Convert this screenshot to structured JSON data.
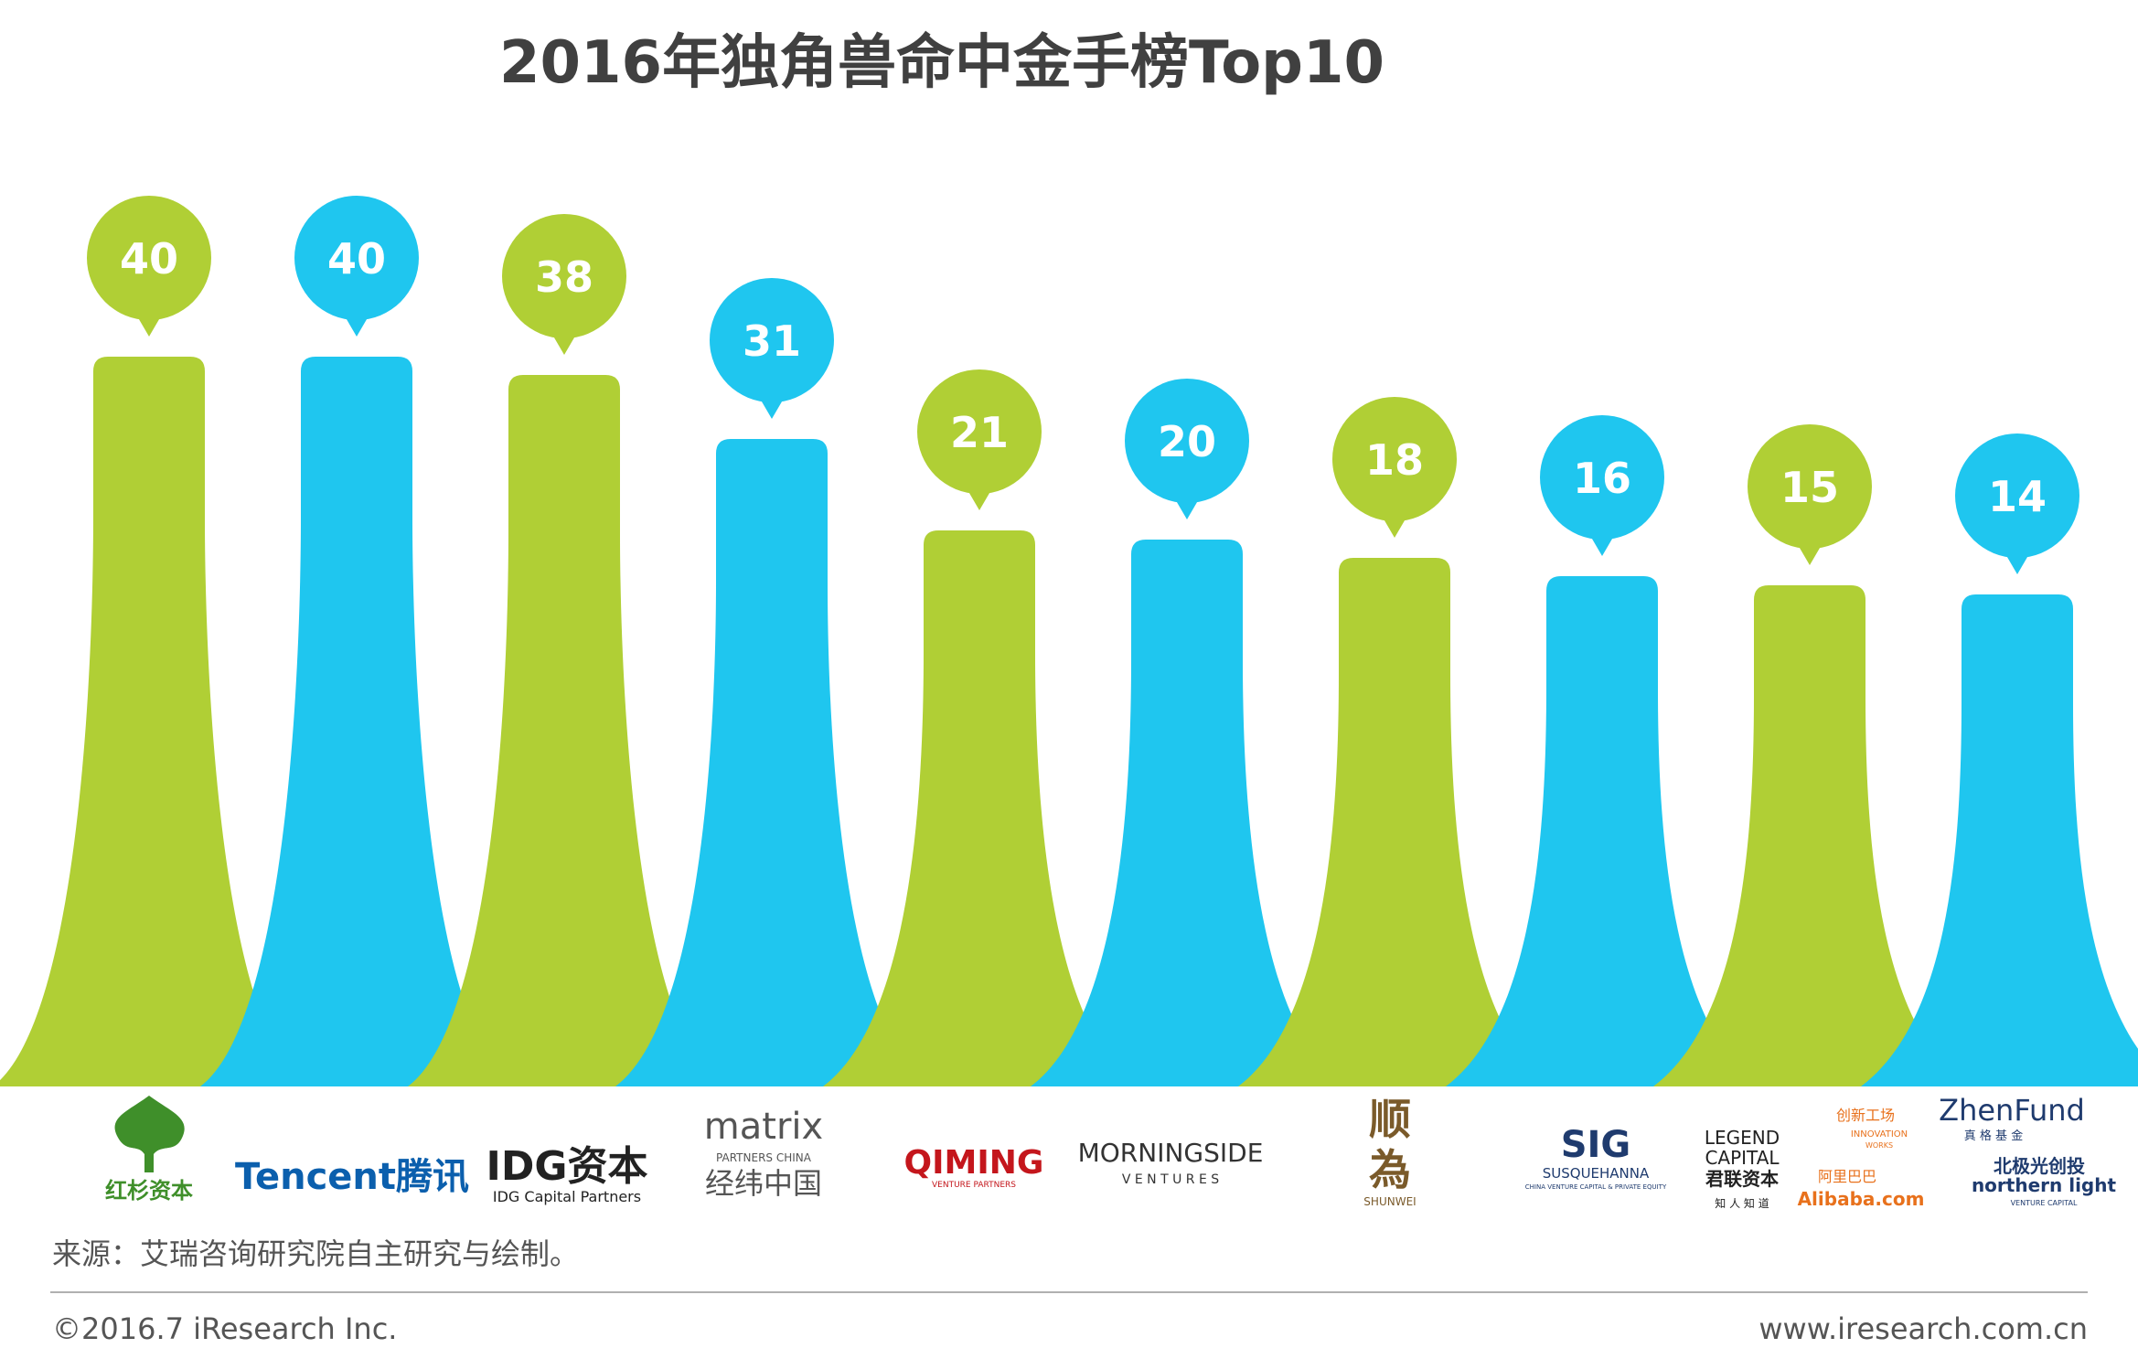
{
  "chart_data": {
    "type": "bar",
    "title": "2016年独角兽命中金手榜Top10",
    "xlabel": "",
    "ylabel": "",
    "ylim": [
      0,
      40
    ],
    "grid": false,
    "legend": "none",
    "categories": [
      "红杉资本",
      "Tencent腾讯",
      "IDG资本",
      "matrix 经纬中国",
      "QIMING",
      "MORNINGSIDE VENTURES",
      "顺为",
      "SIG",
      "LEGEND CAPITAL 君联资本 / 创新工场 / Alibaba.com",
      "ZhenFund 真格基金 / 北极光创投 northern light"
    ],
    "values": [
      40,
      40,
      38,
      31,
      21,
      20,
      18,
      16,
      15,
      14
    ],
    "colors": [
      "#b0cf35",
      "#1fc6ef",
      "#b0cf35",
      "#1fc6ef",
      "#b0cf35",
      "#1fc6ef",
      "#b0cf35",
      "#1fc6ef",
      "#b0cf35",
      "#1fc6ef"
    ]
  },
  "logos": [
    {
      "lines": [
        "红杉资本"
      ],
      "color": "#3f8f2a"
    },
    {
      "lines": [
        "Tencent腾讯"
      ],
      "color": "#0b5fad"
    },
    {
      "lines": [
        "IDG资本",
        "IDG Capital Partners"
      ],
      "color": "#222222"
    },
    {
      "lines": [
        "matrix",
        "PARTNERS CHINA",
        "经纬中国"
      ],
      "color": "#555555"
    },
    {
      "lines": [
        "QIMING",
        "VENTURE PARTNERS"
      ],
      "color": "#c4161c"
    },
    {
      "lines": [
        "MORNINGSIDE",
        "V E N T U R E S"
      ],
      "color": "#333333"
    },
    {
      "lines": [
        "顺",
        "為",
        "SHUNWEI"
      ],
      "color": "#7a5a2a"
    },
    {
      "lines": [
        "SIG",
        "SUSQUEHANNA",
        "CHINA VENTURE CAPITAL & PRIVATE EQUITY"
      ],
      "color": "#1f3b6e"
    },
    {
      "lines": [
        "LEGEND",
        "CAPITAL",
        "君联资本",
        "知 人 知 道"
      ],
      "color": "#222222"
    },
    {
      "lines": [
        "创新工场",
        "INNOVATION",
        "WORKS",
        "阿里巴巴",
        "Alibaba.com"
      ],
      "color": "#e8711c"
    },
    {
      "lines": [
        "ZhenFund",
        "真 格 基 金",
        "北极光创投",
        "northern light",
        "VENTURE CAPITAL"
      ],
      "color": "#1f3b6e"
    }
  ],
  "footer": {
    "source": "来源：艾瑞咨询研究院自主研究与绘制。",
    "copyright": "©2016.7 iResearch Inc.",
    "website": "www.iresearch.com.cn",
    "line_color": "#b0b0b0"
  }
}
